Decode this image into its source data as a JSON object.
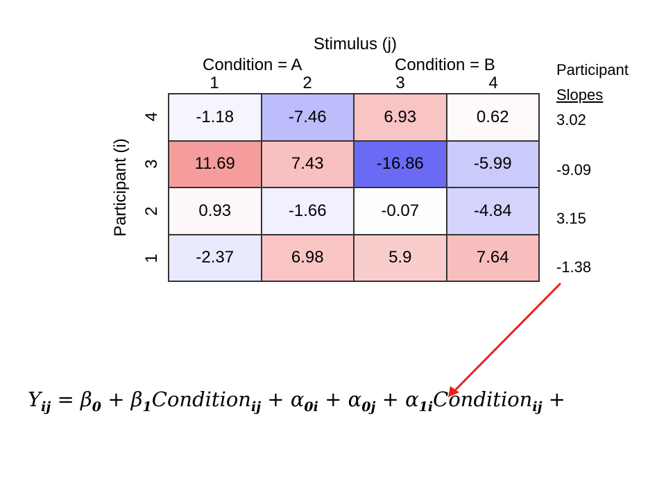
{
  "chart_data": {
    "type": "heatmap",
    "x_title": "Stimulus (j)",
    "x_groups": [
      "Condition = A",
      "Condition = B"
    ],
    "x_ticks": [
      "1",
      "2",
      "3",
      "4"
    ],
    "y_title": "Participant (i)",
    "y_ticks": [
      "4",
      "3",
      "2",
      "1"
    ],
    "cells": [
      [
        "-1.18",
        "-7.46",
        "6.93",
        "0.62"
      ],
      [
        "11.69",
        "7.43",
        "-16.86",
        "-5.99"
      ],
      [
        "0.93",
        "-1.66",
        "-0.07",
        "-4.84"
      ],
      [
        "-2.37",
        "6.98",
        "5.9",
        "7.64"
      ]
    ],
    "colors": {
      "negative": "#6a6af5",
      "positive": "#f07070",
      "neutral": "#ffffff"
    }
  },
  "slopes": {
    "title_line1": "Participant",
    "title_line2": "Slopes",
    "values": [
      "3.02",
      "-9.09",
      "3.15",
      "-1.38"
    ]
  },
  "equation": {
    "Y": "Y",
    "Y_sub": "ij",
    "eq": "=",
    "b0": "β",
    "b0_sub": "0",
    "plus1": "+",
    "b1": "β",
    "b1_sub": "1",
    "cond1": "Condition",
    "cond1_sub": "ij",
    "plus2": "+",
    "a0i": "α",
    "a0i_sub": "0i",
    "plus3": "+",
    "a0j": "α",
    "a0j_sub": "0j",
    "plus4": "+",
    "a1i": "α",
    "a1i_sub": "1i",
    "cond2": "Condition",
    "cond2_sub": "ij",
    "plus5": "+"
  },
  "arrow_color": "#e8201c"
}
